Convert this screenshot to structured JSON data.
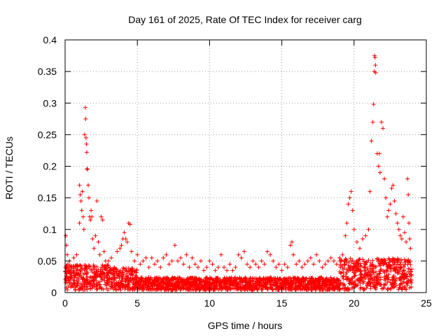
{
  "chart_data": {
    "type": "scatter",
    "title": "Day 161 of 2025, Rate Of TEC Index for receiver carg",
    "xlabel": "GPS time / hours",
    "ylabel": "ROTI / TECUs",
    "xlim": [
      0,
      25
    ],
    "ylim": [
      0,
      0.4
    ],
    "xticks": [
      0,
      5,
      10,
      15,
      20,
      25
    ],
    "yticks": [
      0,
      0.05,
      0.1,
      0.15,
      0.2,
      0.25,
      0.3,
      0.35,
      0.4
    ],
    "xtick_labels": [
      "0",
      "5",
      "10",
      "15",
      "20",
      "25"
    ],
    "ytick_labels": [
      "0",
      "0.05",
      "0.1",
      "0.15",
      "0.2",
      "0.25",
      "0.3",
      "0.35",
      "0.4"
    ],
    "grid": true,
    "marker": "+",
    "color": "#ff0000",
    "series": [
      {
        "name": "ROTI",
        "points": [
          [
            0.05,
            0.09
          ],
          [
            0.1,
            0.075
          ],
          [
            0.15,
            0.06
          ],
          [
            0.2,
            0.045
          ],
          [
            0.3,
            0.05
          ],
          [
            0.4,
            0.04
          ],
          [
            0.6,
            0.055
          ],
          [
            0.8,
            0.06
          ],
          [
            1.0,
            0.11
          ],
          [
            1.0,
            0.17
          ],
          [
            1.05,
            0.155
          ],
          [
            1.1,
            0.145
          ],
          [
            1.15,
            0.13
          ],
          [
            1.2,
            0.16
          ],
          [
            1.25,
            0.12
          ],
          [
            1.3,
            0.1
          ],
          [
            1.35,
            0.25
          ],
          [
            1.4,
            0.293
          ],
          [
            1.42,
            0.275
          ],
          [
            1.45,
            0.245
          ],
          [
            1.48,
            0.235
          ],
          [
            1.5,
            0.222
          ],
          [
            1.52,
            0.196
          ],
          [
            1.55,
            0.195
          ],
          [
            1.6,
            0.17
          ],
          [
            1.65,
            0.15
          ],
          [
            1.7,
            0.12
          ],
          [
            1.75,
            0.115
          ],
          [
            1.8,
            0.13
          ],
          [
            1.85,
            0.12
          ],
          [
            1.9,
            0.085
          ],
          [
            2.0,
            0.07
          ],
          [
            2.1,
            0.09
          ],
          [
            2.2,
            0.145
          ],
          [
            2.3,
            0.08
          ],
          [
            2.4,
            0.06
          ],
          [
            2.5,
            0.12
          ],
          [
            2.6,
            0.115
          ],
          [
            2.7,
            0.065
          ],
          [
            2.8,
            0.05
          ],
          [
            3.0,
            0.05
          ],
          [
            3.2,
            0.055
          ],
          [
            3.4,
            0.04
          ],
          [
            3.6,
            0.065
          ],
          [
            3.8,
            0.07
          ],
          [
            3.9,
            0.075
          ],
          [
            4.0,
            0.085
          ],
          [
            4.1,
            0.095
          ],
          [
            4.2,
            0.085
          ],
          [
            4.3,
            0.08
          ],
          [
            4.4,
            0.11
          ],
          [
            4.5,
            0.108
          ],
          [
            4.6,
            0.065
          ],
          [
            4.8,
            0.05
          ],
          [
            5.0,
            0.06
          ],
          [
            5.2,
            0.045
          ],
          [
            5.4,
            0.05
          ],
          [
            5.6,
            0.055
          ],
          [
            5.8,
            0.04
          ],
          [
            6.0,
            0.055
          ],
          [
            6.2,
            0.045
          ],
          [
            6.4,
            0.05
          ],
          [
            6.6,
            0.04
          ],
          [
            6.8,
            0.055
          ],
          [
            7.0,
            0.06
          ],
          [
            7.2,
            0.045
          ],
          [
            7.4,
            0.05
          ],
          [
            7.6,
            0.075
          ],
          [
            7.8,
            0.05
          ],
          [
            8.0,
            0.055
          ],
          [
            8.2,
            0.045
          ],
          [
            8.4,
            0.06
          ],
          [
            8.6,
            0.04
          ],
          [
            8.8,
            0.055
          ],
          [
            9.0,
            0.045
          ],
          [
            9.2,
            0.04
          ],
          [
            9.4,
            0.05
          ],
          [
            9.6,
            0.035
          ],
          [
            9.8,
            0.04
          ],
          [
            10.0,
            0.05
          ],
          [
            10.2,
            0.045
          ],
          [
            10.4,
            0.035
          ],
          [
            10.6,
            0.04
          ],
          [
            10.8,
            0.06
          ],
          [
            11.0,
            0.04
          ],
          [
            11.2,
            0.035
          ],
          [
            11.4,
            0.045
          ],
          [
            11.6,
            0.035
          ],
          [
            11.8,
            0.04
          ],
          [
            12.0,
            0.06
          ],
          [
            12.2,
            0.055
          ],
          [
            12.4,
            0.065
          ],
          [
            12.6,
            0.045
          ],
          [
            12.8,
            0.04
          ],
          [
            13.0,
            0.05
          ],
          [
            13.2,
            0.045
          ],
          [
            13.4,
            0.04
          ],
          [
            13.6,
            0.05
          ],
          [
            13.8,
            0.045
          ],
          [
            14.0,
            0.065
          ],
          [
            14.2,
            0.06
          ],
          [
            14.4,
            0.05
          ],
          [
            14.6,
            0.04
          ],
          [
            14.8,
            0.045
          ],
          [
            15.0,
            0.035
          ],
          [
            15.2,
            0.045
          ],
          [
            15.4,
            0.04
          ],
          [
            15.6,
            0.075
          ],
          [
            15.7,
            0.08
          ],
          [
            15.8,
            0.06
          ],
          [
            16.0,
            0.045
          ],
          [
            16.2,
            0.05
          ],
          [
            16.4,
            0.04
          ],
          [
            16.6,
            0.045
          ],
          [
            16.8,
            0.05
          ],
          [
            17.0,
            0.055
          ],
          [
            17.2,
            0.045
          ],
          [
            17.4,
            0.06
          ],
          [
            17.6,
            0.05
          ],
          [
            17.8,
            0.04
          ],
          [
            18.0,
            0.045
          ],
          [
            18.2,
            0.05
          ],
          [
            18.4,
            0.055
          ],
          [
            18.6,
            0.05
          ],
          [
            18.8,
            0.045
          ],
          [
            19.0,
            0.055
          ],
          [
            19.2,
            0.06
          ],
          [
            19.4,
            0.09
          ],
          [
            19.5,
            0.11
          ],
          [
            19.6,
            0.14
          ],
          [
            19.7,
            0.15
          ],
          [
            19.8,
            0.16
          ],
          [
            19.9,
            0.13
          ],
          [
            20.0,
            0.1
          ],
          [
            20.2,
            0.08
          ],
          [
            20.4,
            0.07
          ],
          [
            20.6,
            0.085
          ],
          [
            20.8,
            0.09
          ],
          [
            21.0,
            0.1
          ],
          [
            21.1,
            0.16
          ],
          [
            21.2,
            0.24
          ],
          [
            21.3,
            0.27
          ],
          [
            21.35,
            0.298
          ],
          [
            21.4,
            0.35
          ],
          [
            21.42,
            0.375
          ],
          [
            21.45,
            0.372
          ],
          [
            21.48,
            0.36
          ],
          [
            21.5,
            0.348
          ],
          [
            21.6,
            0.22
          ],
          [
            21.7,
            0.2
          ],
          [
            21.75,
            0.22
          ],
          [
            21.8,
            0.19
          ],
          [
            21.9,
            0.27
          ],
          [
            22.0,
            0.26
          ],
          [
            22.1,
            0.18
          ],
          [
            22.2,
            0.15
          ],
          [
            22.3,
            0.12
          ],
          [
            22.4,
            0.13
          ],
          [
            22.5,
            0.14
          ],
          [
            22.6,
            0.165
          ],
          [
            22.7,
            0.17
          ],
          [
            22.8,
            0.145
          ],
          [
            22.9,
            0.125
          ],
          [
            23.0,
            0.11
          ],
          [
            23.1,
            0.1
          ],
          [
            23.2,
            0.09
          ],
          [
            23.3,
            0.085
          ],
          [
            23.4,
            0.12
          ],
          [
            23.5,
            0.095
          ],
          [
            23.6,
            0.08
          ],
          [
            23.7,
            0.18
          ],
          [
            23.75,
            0.155
          ],
          [
            23.8,
            0.11
          ],
          [
            23.85,
            0.085
          ],
          [
            23.9,
            0.07
          ]
        ]
      }
    ]
  }
}
